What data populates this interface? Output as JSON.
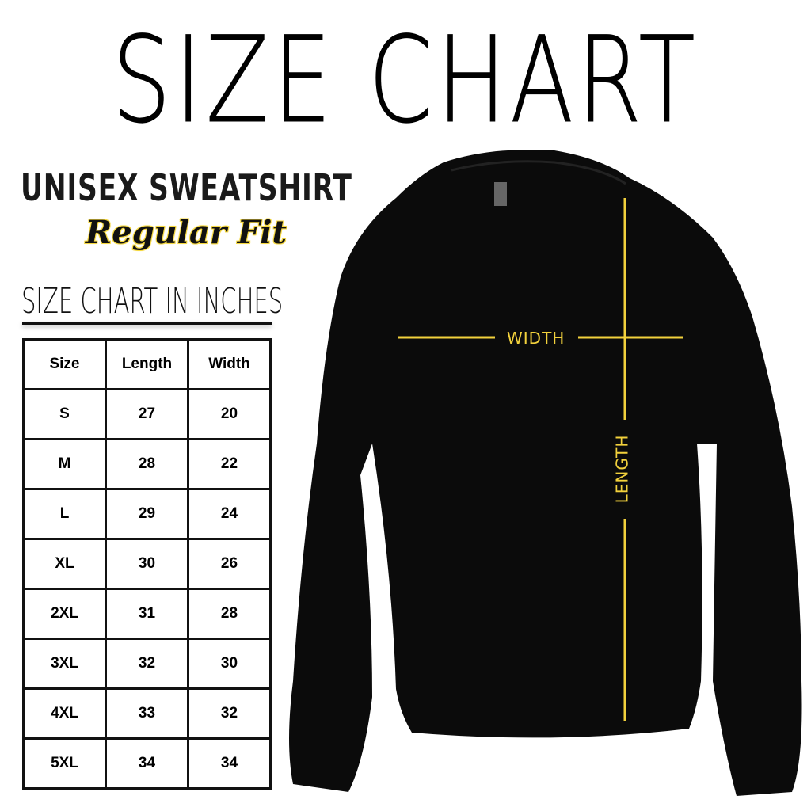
{
  "title": "SIZE CHART",
  "product": "UNISEX SWEATSHIRT",
  "fit": "Regular Fit",
  "subtitle": "SIZE CHART IN INCHES",
  "accent_color": "#f2d13c",
  "table": {
    "headers": [
      "Size",
      "Length",
      "Width"
    ],
    "rows": [
      [
        "S",
        "27",
        "20"
      ],
      [
        "M",
        "28",
        "22"
      ],
      [
        "L",
        "29",
        "24"
      ],
      [
        "XL",
        "30",
        "26"
      ],
      [
        "2XL",
        "31",
        "28"
      ],
      [
        "3XL",
        "32",
        "30"
      ],
      [
        "4XL",
        "33",
        "32"
      ],
      [
        "5XL",
        "34",
        "34"
      ]
    ]
  },
  "measurements": {
    "width_label": "WIDTH",
    "length_label": "LENGTH"
  }
}
